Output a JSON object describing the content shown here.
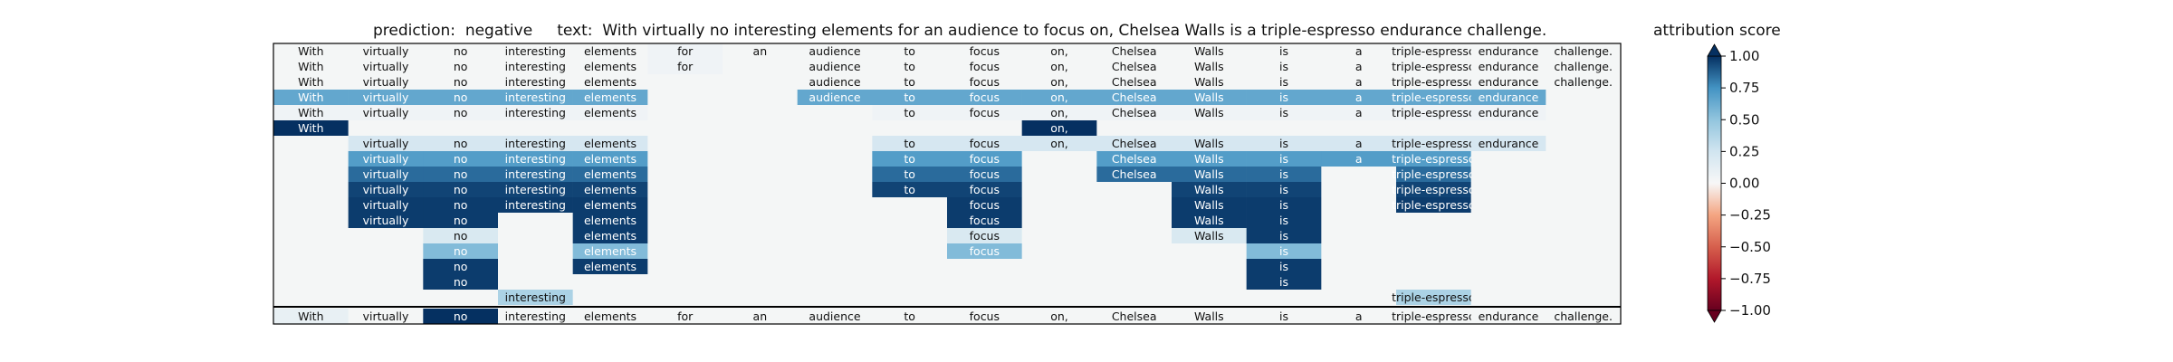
{
  "header": {
    "title": "prediction:  negative     text:  With virtually no interesting elements for an audience to focus on, Chelsea Walls is a triple-espresso endurance challenge.",
    "colorbar_title": "attribution score"
  },
  "chart_data": {
    "type": "heatmap",
    "title": "prediction:  negative     text:  With virtually no interesting elements for an audience to focus on, Chelsea Walls is a triple-espresso endurance challenge.",
    "prediction": "negative",
    "text": "With virtually no interesting elements for an audience to focus on, Chelsea Walls is a triple-espresso endurance challenge.",
    "colorbar_label": "attribution score",
    "colorbar_range": [
      -1.0,
      1.0
    ],
    "colorbar_ticks": [
      "1.00",
      "0.75",
      "0.50",
      "0.25",
      "0.00",
      "−0.25",
      "−0.50",
      "−0.75",
      "−1.00"
    ],
    "colormap": "RdBu",
    "tokens": [
      "With",
      "virtually",
      "no",
      "interesting",
      "elements",
      "for",
      "an",
      "audience",
      "to",
      "focus",
      "on,",
      "Chelsea",
      "Walls",
      "is",
      "a",
      "triple-espresso",
      "endurance",
      "challenge."
    ],
    "rows": [
      {
        "shown": [
          "With",
          "virtually",
          "no",
          "interesting",
          "elements",
          "for",
          "an",
          "audience",
          "to",
          "focus",
          "on,",
          "Chelsea",
          "Walls",
          "is",
          "a",
          "triple-espresso",
          "endurance",
          "challenge."
        ],
        "scores": [
          0,
          0,
          0,
          0,
          0,
          0.05,
          0,
          0,
          0,
          0,
          0,
          0,
          0,
          0,
          0,
          0,
          0,
          0
        ]
      },
      {
        "shown": [
          "With",
          "virtually",
          "no",
          "interesting",
          "elements",
          "for",
          "",
          "audience",
          "to",
          "focus",
          "on,",
          "Chelsea",
          "Walls",
          "is",
          "a",
          "triple-espresso",
          "endurance",
          "challenge."
        ],
        "scores": [
          0,
          0,
          0,
          0,
          0,
          0.05,
          0,
          0,
          0,
          0,
          0,
          0,
          0,
          0,
          0,
          0,
          0,
          0
        ]
      },
      {
        "shown": [
          "With",
          "virtually",
          "no",
          "interesting",
          "elements",
          "",
          "",
          "audience",
          "to",
          "focus",
          "on,",
          "Chelsea",
          "Walls",
          "is",
          "a",
          "triple-espresso",
          "endurance",
          "challenge."
        ],
        "scores": [
          0,
          0,
          0,
          0,
          0,
          0,
          0,
          0,
          0,
          0,
          0,
          0,
          0,
          0,
          0,
          0,
          0,
          0
        ]
      },
      {
        "shown": [
          "With",
          "virtually",
          "no",
          "interesting",
          "elements",
          "",
          "",
          "audience",
          "to",
          "focus",
          "on,",
          "Chelsea",
          "Walls",
          "is",
          "a",
          "triple-espresso",
          "endurance",
          ""
        ],
        "scores": [
          0.65,
          0.65,
          0.65,
          0.65,
          0.65,
          0,
          0,
          0.65,
          0.65,
          0.65,
          0.65,
          0.65,
          0.65,
          0.65,
          0.65,
          0.65,
          0.65,
          0
        ]
      },
      {
        "shown": [
          "With",
          "virtually",
          "no",
          "interesting",
          "elements",
          "",
          "",
          "",
          "to",
          "focus",
          "on,",
          "Chelsea",
          "Walls",
          "is",
          "a",
          "triple-espresso",
          "endurance",
          ""
        ],
        "scores": [
          0.05,
          0.05,
          0.05,
          0.05,
          0.05,
          0,
          0,
          0,
          0.05,
          0.05,
          0.05,
          0.05,
          0.05,
          0.05,
          0.05,
          0.05,
          0.05,
          0
        ]
      },
      {
        "shown": [
          "With",
          "",
          "",
          "",
          "",
          "",
          "",
          "",
          "",
          "",
          "on,",
          "",
          "",
          "",
          "",
          "",
          "",
          ""
        ],
        "scores": [
          1,
          0,
          0,
          0,
          0,
          0,
          0,
          0,
          0,
          0,
          1,
          0,
          0,
          0,
          0,
          0,
          0,
          0
        ]
      },
      {
        "shown": [
          "",
          "virtually",
          "no",
          "interesting",
          "elements",
          "",
          "",
          "",
          "to",
          "focus",
          "on,",
          "Chelsea",
          "Walls",
          "is",
          "a",
          "triple-espresso",
          "endurance",
          ""
        ],
        "scores": [
          0,
          0.22,
          0.22,
          0.22,
          0.22,
          0,
          0,
          0,
          0.22,
          0.22,
          0.22,
          0.22,
          0.22,
          0.22,
          0.22,
          0.22,
          0.22,
          0
        ]
      },
      {
        "shown": [
          "",
          "virtually",
          "no",
          "interesting",
          "elements",
          "",
          "",
          "",
          "to",
          "focus",
          "",
          "Chelsea",
          "Walls",
          "is",
          "a",
          "triple-espresso",
          "",
          ""
        ],
        "scores": [
          0,
          0.7,
          0.7,
          0.7,
          0.7,
          0,
          0,
          0,
          0.7,
          0.7,
          0,
          0.7,
          0.7,
          0.7,
          0.7,
          0.7,
          0,
          0
        ]
      },
      {
        "shown": [
          "",
          "virtually",
          "no",
          "interesting",
          "elements",
          "",
          "",
          "",
          "to",
          "focus",
          "",
          "Chelsea",
          "Walls",
          "is",
          "",
          "triple-espresso",
          "",
          ""
        ],
        "scores": [
          0,
          0.85,
          0.85,
          0.85,
          0.85,
          0,
          0,
          0,
          0.85,
          0.85,
          0,
          0.85,
          0.85,
          0.85,
          0,
          0.85,
          0,
          0
        ]
      },
      {
        "shown": [
          "",
          "virtually",
          "no",
          "interesting",
          "elements",
          "",
          "",
          "",
          "to",
          "focus",
          "",
          "",
          "Walls",
          "is",
          "",
          "triple-espresso",
          "",
          ""
        ],
        "scores": [
          0,
          0.95,
          0.95,
          0.95,
          0.95,
          0,
          0,
          0,
          0.95,
          0.95,
          0,
          0,
          0.95,
          0.95,
          0,
          0.95,
          0,
          0
        ]
      },
      {
        "shown": [
          "",
          "virtually",
          "no",
          "interesting",
          "elements",
          "",
          "",
          "",
          "",
          "focus",
          "",
          "",
          "Walls",
          "is",
          "",
          "triple-espresso",
          "",
          ""
        ],
        "scores": [
          0,
          0.97,
          0.97,
          0.97,
          0.97,
          0,
          0,
          0,
          0,
          0.97,
          0,
          0,
          0.97,
          0.97,
          0,
          0.97,
          0,
          0
        ]
      },
      {
        "shown": [
          "",
          "virtually",
          "no",
          "",
          "elements",
          "",
          "",
          "",
          "",
          "focus",
          "",
          "",
          "Walls",
          "is",
          "",
          "",
          "",
          ""
        ],
        "scores": [
          0,
          0.97,
          0.97,
          0,
          0.97,
          0,
          0,
          0,
          0,
          0.97,
          0,
          0,
          0.97,
          0.97,
          0,
          0,
          0,
          0
        ]
      },
      {
        "shown": [
          "",
          "",
          "no",
          "",
          "elements",
          "",
          "",
          "",
          "",
          "focus",
          "",
          "",
          "Walls",
          "is",
          "",
          "",
          "",
          ""
        ],
        "scores": [
          0,
          0,
          0.2,
          0,
          0.97,
          0,
          0,
          0,
          0,
          0.2,
          0,
          0,
          0.2,
          0.97,
          0,
          0,
          0,
          0
        ]
      },
      {
        "shown": [
          "",
          "",
          "no",
          "",
          "elements",
          "",
          "",
          "",
          "",
          "focus",
          "",
          "",
          "",
          "is",
          "",
          "",
          "",
          ""
        ],
        "scores": [
          0,
          0,
          0.55,
          0,
          0.55,
          0,
          0,
          0,
          0,
          0.55,
          0,
          0,
          0,
          0.55,
          0,
          0,
          0,
          0
        ]
      },
      {
        "shown": [
          "",
          "",
          "no",
          "",
          "elements",
          "",
          "",
          "",
          "",
          "",
          "",
          "",
          "",
          "is",
          "",
          "",
          "",
          ""
        ],
        "scores": [
          0,
          0,
          0.97,
          0,
          0.97,
          0,
          0,
          0,
          0,
          0,
          0,
          0,
          0,
          0.97,
          0,
          0,
          0,
          0
        ]
      },
      {
        "shown": [
          "",
          "",
          "no",
          "",
          "",
          "",
          "",
          "",
          "",
          "",
          "",
          "",
          "",
          "is",
          "",
          "",
          "",
          ""
        ],
        "scores": [
          0,
          0,
          0.97,
          0,
          0,
          0,
          0,
          0,
          0,
          0,
          0,
          0,
          0,
          0.97,
          0,
          0,
          0,
          0
        ]
      },
      {
        "shown": [
          "",
          "",
          "",
          "interesting",
          "",
          "",
          "",
          "",
          "",
          "",
          "",
          "",
          "",
          "",
          "",
          "triple-espresso",
          "",
          ""
        ],
        "scores": [
          0,
          0,
          0,
          0.4,
          0,
          0,
          0,
          0,
          0,
          0,
          0,
          0,
          0,
          0,
          0,
          0.4,
          0,
          0
        ]
      }
    ],
    "summary_row": {
      "shown": [
        "With",
        "virtually",
        "no",
        "interesting",
        "elements",
        "for",
        "an",
        "audience",
        "to",
        "focus",
        "on,",
        "Chelsea",
        "Walls",
        "is",
        "a",
        "triple-espresso",
        "endurance",
        "challenge."
      ],
      "scores": [
        0.1,
        0,
        1,
        0.02,
        0,
        0,
        0,
        0,
        0,
        0,
        0,
        0,
        0,
        0,
        0,
        0,
        0,
        0
      ]
    }
  }
}
